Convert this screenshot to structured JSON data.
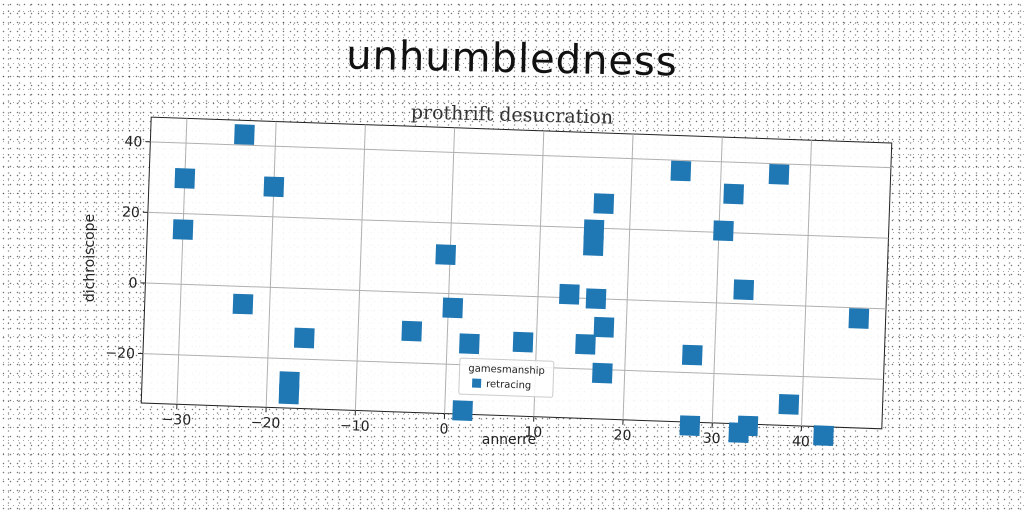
{
  "chart_data": {
    "type": "scatter",
    "title": "unhumbledness",
    "subtitle": "prothrift desucration",
    "xlabel": "annerre",
    "ylabel": "dichroiscope",
    "xlim": [
      -34,
      49
    ],
    "ylim": [
      -34,
      47
    ],
    "xticks": [
      -30,
      -20,
      -10,
      0,
      10,
      20,
      30,
      40
    ],
    "yticks": [
      -20,
      0,
      20,
      40
    ],
    "grid": true,
    "legend": {
      "title": "gamesmanship",
      "placement": "lower-center"
    },
    "marker_color": "#1f77b4",
    "series": [
      {
        "name": "retracing",
        "marker": "square",
        "points": [
          [
            -23.5,
            43
          ],
          [
            -30,
            30
          ],
          [
            -20,
            28.5
          ],
          [
            -30,
            15.5
          ],
          [
            -23,
            -5
          ],
          [
            -16,
            -14
          ],
          [
            -17.5,
            -26.5
          ],
          [
            -17.5,
            -30
          ],
          [
            -4,
            -11
          ],
          [
            -0.5,
            11
          ],
          [
            0.5,
            -4
          ],
          [
            2.5,
            -14
          ],
          [
            8.5,
            -13
          ],
          [
            13.5,
            1
          ],
          [
            15.5,
            -13
          ],
          [
            16,
            19.5
          ],
          [
            16,
            15
          ],
          [
            17,
            27
          ],
          [
            16.5,
            0
          ],
          [
            17.5,
            -8
          ],
          [
            17.5,
            -21
          ],
          [
            25.5,
            37
          ],
          [
            27.5,
            -15
          ],
          [
            31.5,
            31
          ],
          [
            30.5,
            20.5
          ],
          [
            33,
            4
          ],
          [
            36.5,
            37
          ],
          [
            46,
            -3
          ],
          [
            38.5,
            -28
          ],
          [
            42.5,
            -36.5
          ],
          [
            34,
            -34.5
          ],
          [
            33,
            -36.5
          ],
          [
            27.5,
            -35
          ],
          [
            2,
            -33
          ]
        ]
      }
    ]
  }
}
